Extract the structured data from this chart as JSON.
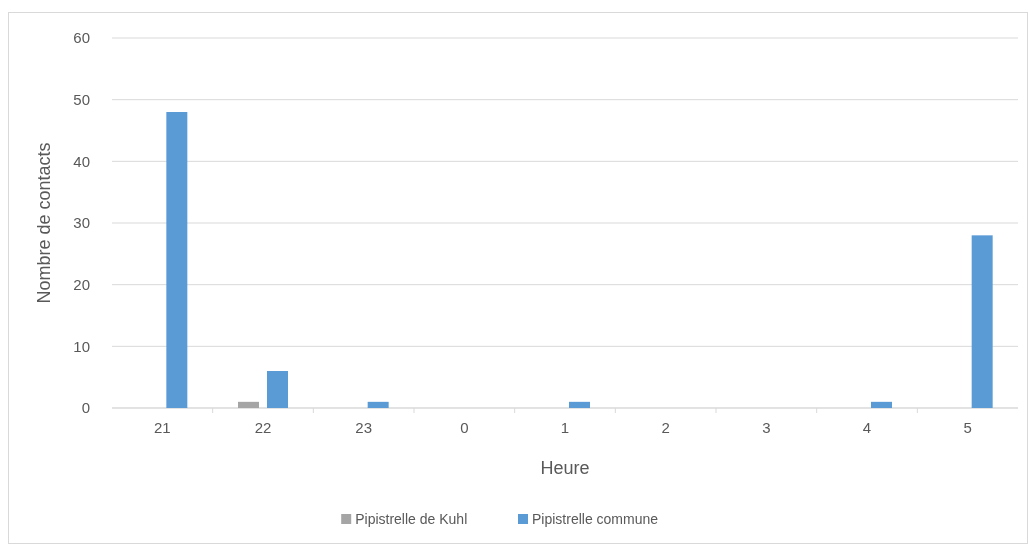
{
  "chart_data": {
    "type": "bar",
    "xlabel": "Heure",
    "ylabel": "Nombre de contacts",
    "categories": [
      "21",
      "22",
      "23",
      "0",
      "1",
      "2",
      "3",
      "4",
      "5"
    ],
    "series": [
      {
        "name": "Pipistrelle de Kuhl",
        "color": "#a5a5a5",
        "values": [
          0,
          1,
          0,
          0,
          0,
          0,
          0,
          0,
          0
        ]
      },
      {
        "name": "Pipistrelle commune",
        "color": "#5b9bd5",
        "values": [
          48,
          6,
          1,
          0,
          1,
          0,
          0,
          1,
          28
        ]
      }
    ],
    "ylim": [
      0,
      60
    ],
    "yticks": [
      0,
      10,
      20,
      30,
      40,
      50,
      60
    ],
    "grid": "y",
    "legend": "bottom"
  }
}
